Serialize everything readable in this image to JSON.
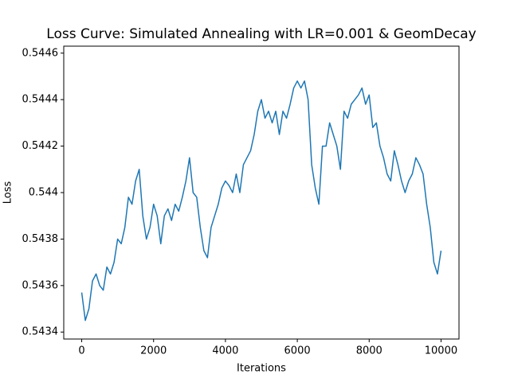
{
  "chart_data": {
    "type": "line",
    "title": "Loss Curve: Simulated Annealing with LR=0.001 & GeomDecay",
    "x_label": "Iterations",
    "y_label": "Loss",
    "color": "#1f77b4",
    "x": [
      0,
      100,
      200,
      300,
      400,
      500,
      600,
      700,
      800,
      900,
      1000,
      1100,
      1200,
      1300,
      1400,
      1500,
      1600,
      1700,
      1800,
      1900,
      2000,
      2100,
      2200,
      2300,
      2400,
      2500,
      2600,
      2700,
      2800,
      2900,
      3000,
      3100,
      3200,
      3300,
      3400,
      3500,
      3600,
      3700,
      3800,
      3900,
      4000,
      4100,
      4200,
      4300,
      4400,
      4500,
      4600,
      4700,
      4800,
      4900,
      5000,
      5100,
      5200,
      5300,
      5400,
      5500,
      5600,
      5700,
      5800,
      5900,
      6000,
      6100,
      6200,
      6300,
      6400,
      6500,
      6600,
      6700,
      6800,
      6900,
      7000,
      7100,
      7200,
      7300,
      7400,
      7500,
      7600,
      7700,
      7800,
      7900,
      8000,
      8100,
      8200,
      8300,
      8400,
      8500,
      8600,
      8700,
      8800,
      8900,
      9000,
      9100,
      9200,
      9300,
      9400,
      9500,
      9600,
      9700,
      9800,
      9900,
      10000
    ],
    "values": [
      0.54357,
      0.54345,
      0.5435,
      0.54362,
      0.54365,
      0.5436,
      0.54358,
      0.54368,
      0.54365,
      0.5437,
      0.5438,
      0.54378,
      0.54385,
      0.54398,
      0.54395,
      0.54405,
      0.5441,
      0.5439,
      0.5438,
      0.54385,
      0.54395,
      0.5439,
      0.54378,
      0.5439,
      0.54393,
      0.54388,
      0.54395,
      0.54392,
      0.54398,
      0.54405,
      0.54415,
      0.544,
      0.54398,
      0.54385,
      0.54375,
      0.54372,
      0.54385,
      0.5439,
      0.54395,
      0.54402,
      0.54405,
      0.54403,
      0.544,
      0.54408,
      0.544,
      0.54412,
      0.54415,
      0.54418,
      0.54425,
      0.54435,
      0.5444,
      0.54432,
      0.54435,
      0.5443,
      0.54435,
      0.54425,
      0.54435,
      0.54432,
      0.54438,
      0.54445,
      0.54448,
      0.54445,
      0.54448,
      0.5444,
      0.54412,
      0.54402,
      0.54395,
      0.5442,
      0.5442,
      0.5443,
      0.54425,
      0.5442,
      0.5441,
      0.54435,
      0.54432,
      0.54438,
      0.5444,
      0.54442,
      0.54445,
      0.54438,
      0.54442,
      0.54428,
      0.5443,
      0.5442,
      0.54415,
      0.54408,
      0.54405,
      0.54418,
      0.54412,
      0.54405,
      0.544,
      0.54405,
      0.54408,
      0.54415,
      0.54412,
      0.54408,
      0.54395,
      0.54385,
      0.5437,
      0.54365,
      0.54375
    ],
    "xlim": [
      -500,
      10500
    ],
    "xticks": [
      0,
      2000,
      4000,
      6000,
      8000,
      10000
    ],
    "ylim": [
      0.54337,
      0.54463
    ],
    "yticks": [
      0.5434,
      0.5436,
      0.5438,
      0.544,
      0.5442,
      0.5444,
      0.5446
    ]
  }
}
